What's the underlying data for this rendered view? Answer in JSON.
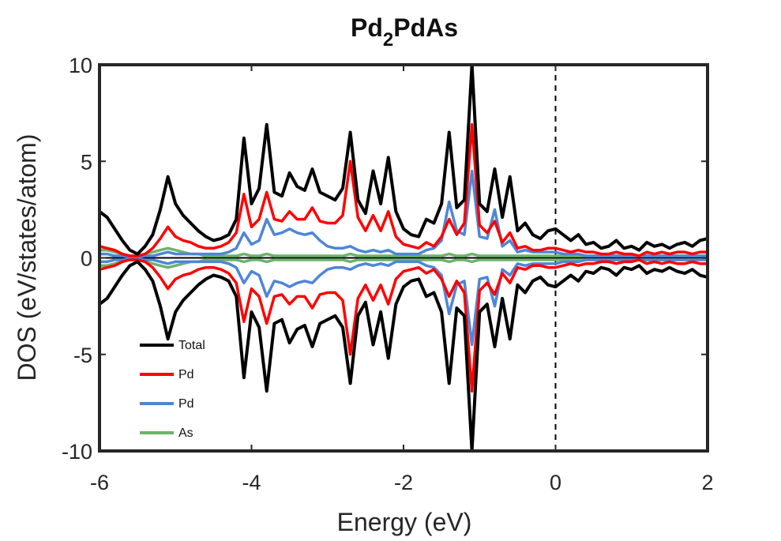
{
  "chart_data": {
    "type": "line",
    "title": {
      "parts": [
        "Pd",
        "2",
        "PdAs"
      ]
    },
    "xlabel": "Energy (eV)",
    "ylabel": "DOS (eV/states/atom)",
    "xlim": [
      -6,
      2
    ],
    "ylim": [
      -10,
      10
    ],
    "xticks": [
      -6,
      -4,
      -2,
      0,
      2
    ],
    "yticks": [
      -10,
      -5,
      0,
      5,
      10
    ],
    "xtick_labels": [
      "-6",
      "-4",
      "-2",
      "0",
      "2"
    ],
    "ytick_labels": [
      "-10",
      "-5",
      "0",
      "5",
      "10"
    ],
    "fermi_level": 0,
    "legend_position": "lower-left",
    "grid": false,
    "mirrored_spin_down": true,
    "series": [
      {
        "name": "Total",
        "color": "#000000",
        "x": [
          -6.0,
          -5.9,
          -5.8,
          -5.7,
          -5.6,
          -5.5,
          -5.4,
          -5.3,
          -5.2,
          -5.1,
          -5.0,
          -4.9,
          -4.8,
          -4.7,
          -4.6,
          -4.5,
          -4.4,
          -4.3,
          -4.2,
          -4.1,
          -4.0,
          -3.9,
          -3.8,
          -3.7,
          -3.6,
          -3.5,
          -3.4,
          -3.3,
          -3.2,
          -3.1,
          -3.0,
          -2.9,
          -2.8,
          -2.7,
          -2.6,
          -2.5,
          -2.4,
          -2.3,
          -2.2,
          -2.1,
          -2.0,
          -1.9,
          -1.8,
          -1.7,
          -1.6,
          -1.5,
          -1.4,
          -1.3,
          -1.2,
          -1.1,
          -1.0,
          -0.9,
          -0.8,
          -0.7,
          -0.6,
          -0.5,
          -0.4,
          -0.3,
          -0.2,
          -0.1,
          0.0,
          0.1,
          0.2,
          0.3,
          0.4,
          0.5,
          0.6,
          0.7,
          0.8,
          0.9,
          1.0,
          1.1,
          1.2,
          1.3,
          1.4,
          1.5,
          1.6,
          1.7,
          1.8,
          1.9,
          2.0
        ],
        "values": [
          2.4,
          2.1,
          1.5,
          0.9,
          0.4,
          0.2,
          0.6,
          1.2,
          2.5,
          4.2,
          2.8,
          2.2,
          1.8,
          1.4,
          1.1,
          0.9,
          1.0,
          1.2,
          2.0,
          6.2,
          2.8,
          3.6,
          6.9,
          3.4,
          3.2,
          4.4,
          3.7,
          3.5,
          4.6,
          3.4,
          3.2,
          3.0,
          3.6,
          6.5,
          3.0,
          2.3,
          4.5,
          2.8,
          5.2,
          2.4,
          1.5,
          1.2,
          1.1,
          2.0,
          1.8,
          2.8,
          6.5,
          2.6,
          3.0,
          10.0,
          2.8,
          2.4,
          4.6,
          2.1,
          4.2,
          1.4,
          1.8,
          1.2,
          1.0,
          1.4,
          1.5,
          1.2,
          0.9,
          1.2,
          0.7,
          0.8,
          0.5,
          0.6,
          0.9,
          0.5,
          0.6,
          0.4,
          0.8,
          0.6,
          0.7,
          0.5,
          0.7,
          0.8,
          0.6,
          0.9,
          1.0
        ]
      },
      {
        "name": "Pd",
        "color": "#ff0000",
        "x": [
          -6.0,
          -5.9,
          -5.8,
          -5.7,
          -5.6,
          -5.5,
          -5.4,
          -5.3,
          -5.2,
          -5.1,
          -5.0,
          -4.9,
          -4.8,
          -4.7,
          -4.6,
          -4.5,
          -4.4,
          -4.3,
          -4.2,
          -4.1,
          -4.0,
          -3.9,
          -3.8,
          -3.7,
          -3.6,
          -3.5,
          -3.4,
          -3.3,
          -3.2,
          -3.1,
          -3.0,
          -2.9,
          -2.8,
          -2.7,
          -2.6,
          -2.5,
          -2.4,
          -2.3,
          -2.2,
          -2.1,
          -2.0,
          -1.9,
          -1.8,
          -1.7,
          -1.6,
          -1.5,
          -1.4,
          -1.3,
          -1.2,
          -1.1,
          -1.0,
          -0.9,
          -0.8,
          -0.7,
          -0.6,
          -0.5,
          -0.4,
          -0.3,
          -0.2,
          -0.1,
          0.0,
          0.1,
          0.2,
          0.3,
          0.4,
          0.5,
          0.6,
          0.7,
          0.8,
          0.9,
          1.0,
          1.1,
          1.2,
          1.3,
          1.4,
          1.5,
          1.6,
          1.7,
          1.8,
          1.9,
          2.0
        ],
        "values": [
          0.6,
          0.5,
          0.4,
          0.2,
          0.1,
          0.1,
          0.2,
          0.5,
          1.0,
          1.6,
          1.1,
          0.9,
          0.8,
          0.6,
          0.5,
          0.5,
          0.6,
          0.8,
          1.3,
          3.3,
          1.6,
          2.0,
          3.4,
          2.0,
          1.9,
          2.4,
          2.0,
          2.0,
          2.6,
          1.9,
          1.8,
          1.8,
          2.2,
          5.0,
          2.1,
          1.4,
          2.2,
          1.4,
          2.4,
          1.1,
          0.7,
          0.6,
          0.5,
          0.8,
          0.6,
          1.1,
          2.0,
          1.2,
          1.8,
          6.9,
          1.7,
          1.3,
          1.9,
          0.8,
          1.3,
          0.5,
          0.6,
          0.4,
          0.4,
          0.5,
          0.5,
          0.4,
          0.3,
          0.4,
          0.3,
          0.3,
          0.2,
          0.2,
          0.3,
          0.2,
          0.2,
          0.1,
          0.3,
          0.2,
          0.3,
          0.2,
          0.3,
          0.3,
          0.2,
          0.3,
          0.3
        ]
      },
      {
        "name": "Pd",
        "color": "#4f86d6",
        "x": [
          -6.0,
          -5.9,
          -5.8,
          -5.7,
          -5.6,
          -5.5,
          -5.4,
          -5.3,
          -5.2,
          -5.1,
          -5.0,
          -4.9,
          -4.8,
          -4.7,
          -4.6,
          -4.5,
          -4.4,
          -4.3,
          -4.2,
          -4.1,
          -4.0,
          -3.9,
          -3.8,
          -3.7,
          -3.6,
          -3.5,
          -3.4,
          -3.3,
          -3.2,
          -3.1,
          -3.0,
          -2.9,
          -2.8,
          -2.7,
          -2.6,
          -2.5,
          -2.4,
          -2.3,
          -2.2,
          -2.1,
          -2.0,
          -1.9,
          -1.8,
          -1.7,
          -1.6,
          -1.5,
          -1.4,
          -1.3,
          -1.2,
          -1.1,
          -1.0,
          -0.9,
          -0.8,
          -0.7,
          -0.6,
          -0.5,
          -0.4,
          -0.3,
          -0.2,
          -0.1,
          0.0,
          0.1,
          0.2,
          0.3,
          0.4,
          0.5,
          0.6,
          0.7,
          0.8,
          0.9,
          1.0,
          1.1,
          1.2,
          1.3,
          1.4,
          1.5,
          1.6,
          1.7,
          1.8,
          1.9,
          2.0
        ],
        "values": [
          0.2,
          0.2,
          0.1,
          0.1,
          0.05,
          0.05,
          0.1,
          0.1,
          0.2,
          0.3,
          0.2,
          0.2,
          0.2,
          0.2,
          0.2,
          0.2,
          0.2,
          0.3,
          0.5,
          1.3,
          0.7,
          0.9,
          2.0,
          1.2,
          1.3,
          1.5,
          1.3,
          1.2,
          1.3,
          0.9,
          0.6,
          0.5,
          0.5,
          0.6,
          0.4,
          0.3,
          0.4,
          0.3,
          0.4,
          0.2,
          0.2,
          0.2,
          0.2,
          0.4,
          0.5,
          0.9,
          2.9,
          1.4,
          1.2,
          4.5,
          1.1,
          1.0,
          2.5,
          0.6,
          0.9,
          0.3,
          0.4,
          0.3,
          0.3,
          0.3,
          0.3,
          0.2,
          0.2,
          0.2,
          0.1,
          0.1,
          0.1,
          0.1,
          0.1,
          0.1,
          0.1,
          0.1,
          0.1,
          0.1,
          0.1,
          0.1,
          0.1,
          0.1,
          0.1,
          0.1,
          0.1
        ]
      },
      {
        "name": "As",
        "color": "#6db36d",
        "x": [
          -6.0,
          -5.9,
          -5.8,
          -5.7,
          -5.6,
          -5.5,
          -5.4,
          -5.3,
          -5.2,
          -5.1,
          -5.0,
          -4.9,
          -4.8,
          -4.7,
          -4.6,
          -4.5,
          -4.4,
          -4.3,
          -4.2,
          -4.1,
          -4.0,
          -3.9,
          -3.8,
          -3.7,
          -3.6,
          -3.5,
          -3.4,
          -3.3,
          -3.2,
          -3.1,
          -3.0,
          -2.9,
          -2.8,
          -2.7,
          -2.6,
          -2.5,
          -2.4,
          -2.3,
          -2.2,
          -2.1,
          -2.0,
          -1.9,
          -1.8,
          -1.7,
          -1.6,
          -1.5,
          -1.4,
          -1.3,
          -1.2,
          -1.1,
          -1.0,
          -0.9,
          -0.8,
          -0.7,
          -0.6,
          -0.5,
          -0.4,
          -0.3,
          -0.2,
          -0.1,
          0.0,
          0.1,
          0.2,
          0.3,
          0.4,
          0.5,
          0.6,
          0.7,
          0.8,
          0.9,
          1.0,
          1.1,
          1.2,
          1.3,
          1.4,
          1.5,
          1.6,
          1.7,
          1.8,
          1.9,
          2.0
        ],
        "values": [
          0.4,
          0.4,
          0.3,
          0.2,
          0.1,
          0.1,
          0.2,
          0.3,
          0.4,
          0.5,
          0.4,
          0.3,
          0.2,
          0.2,
          0.1,
          0.1,
          0.1,
          0.1,
          0.1,
          0.2,
          0.1,
          0.1,
          0.2,
          0.1,
          0.1,
          0.1,
          0.1,
          0.1,
          0.1,
          0.1,
          0.1,
          0.1,
          0.1,
          0.2,
          0.1,
          0.1,
          0.1,
          0.1,
          0.1,
          0.1,
          0.1,
          0.1,
          0.1,
          0.1,
          0.1,
          0.1,
          0.2,
          0.1,
          0.1,
          0.2,
          0.1,
          0.1,
          0.1,
          0.1,
          0.1,
          0.1,
          0.1,
          0.1,
          0.1,
          0.1,
          0.1,
          0.1,
          0.1,
          0.1,
          0.1,
          0.1,
          0.1,
          0.1,
          0.1,
          0.1,
          0.1,
          0.1,
          0.1,
          0.1,
          0.1,
          0.1,
          0.1,
          0.1,
          0.1,
          0.1,
          0.1
        ]
      }
    ]
  }
}
